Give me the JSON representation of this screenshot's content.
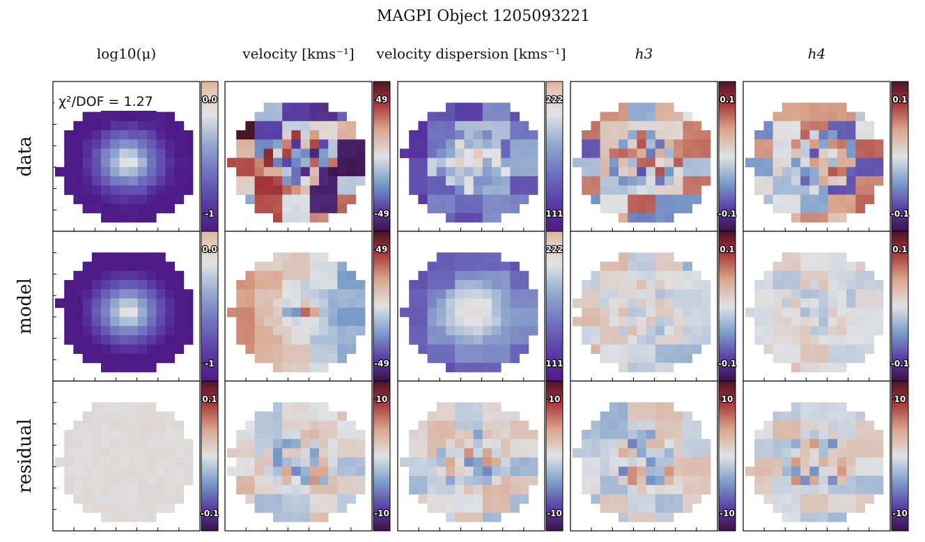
{
  "chart_data": {
    "type": "heatmap",
    "title": "MAGPI Object 1205093221",
    "column_titles": [
      "log10(μ)",
      "velocity [kms⁻¹]",
      "velocity dispersion [kms⁻¹]",
      "h3",
      "h4"
    ],
    "row_labels": [
      "data",
      "model",
      "residual"
    ],
    "annotation": "χ²/DOF = 1.27",
    "colormaps": {
      "sequential_twilight": [
        "#4e1a86",
        "#5b3fa6",
        "#6e6fbf",
        "#90a8cd",
        "#e0e3e6",
        "#e6cfc2",
        "#dfb39a"
      ],
      "diverging_twilight": [
        "#3d1248",
        "#5a3ea6",
        "#7a9cc9",
        "#dfe1e4",
        "#d9a58b",
        "#a8383a",
        "#4d1428"
      ]
    },
    "panels": [
      {
        "row": "data",
        "column": "log10(μ)",
        "colormap": "sequential_twilight",
        "cbar_top": "0.0",
        "cbar_bottom": "-1",
        "vmin": -1,
        "vmax": 0
      },
      {
        "row": "data",
        "column": "velocity",
        "colormap": "diverging_twilight",
        "cbar_top": "49",
        "cbar_bottom": "-49",
        "vmin": -49,
        "vmax": 49
      },
      {
        "row": "data",
        "column": "velocity dispersion",
        "colormap": "sequential_twilight",
        "cbar_top": "222",
        "cbar_bottom": "111",
        "vmin": 111,
        "vmax": 222
      },
      {
        "row": "data",
        "column": "h3",
        "colormap": "diverging_twilight",
        "cbar_top": "0.1",
        "cbar_bottom": "-0.1",
        "vmin": -0.1,
        "vmax": 0.1
      },
      {
        "row": "data",
        "column": "h4",
        "colormap": "diverging_twilight",
        "cbar_top": "0.1",
        "cbar_bottom": "-0.1",
        "vmin": -0.1,
        "vmax": 0.1
      },
      {
        "row": "model",
        "column": "log10(μ)",
        "colormap": "sequential_twilight",
        "cbar_top": "0.0",
        "cbar_bottom": "-1",
        "vmin": -1,
        "vmax": 0
      },
      {
        "row": "model",
        "column": "velocity",
        "colormap": "diverging_twilight",
        "cbar_top": "49",
        "cbar_bottom": "-49",
        "vmin": -49,
        "vmax": 49
      },
      {
        "row": "model",
        "column": "velocity dispersion",
        "colormap": "sequential_twilight",
        "cbar_top": "222",
        "cbar_bottom": "111",
        "vmin": 111,
        "vmax": 222
      },
      {
        "row": "model",
        "column": "h3",
        "colormap": "diverging_twilight",
        "cbar_top": "0.1",
        "cbar_bottom": "-0.1",
        "vmin": -0.1,
        "vmax": 0.1
      },
      {
        "row": "model",
        "column": "h4",
        "colormap": "diverging_twilight",
        "cbar_top": "0.1",
        "cbar_bottom": "-0.1",
        "vmin": -0.1,
        "vmax": 0.1
      },
      {
        "row": "residual",
        "column": "log10(μ)",
        "colormap": "diverging_twilight",
        "cbar_top": "0.1",
        "cbar_bottom": "-0.1",
        "vmin": -0.1,
        "vmax": 0.1
      },
      {
        "row": "residual",
        "column": "velocity",
        "colormap": "diverging_twilight",
        "cbar_top": "10",
        "cbar_bottom": "-10",
        "vmin": -10,
        "vmax": 10
      },
      {
        "row": "residual",
        "column": "velocity dispersion",
        "colormap": "diverging_twilight",
        "cbar_top": "10",
        "cbar_bottom": "-10",
        "vmin": -10,
        "vmax": 10
      },
      {
        "row": "residual",
        "column": "h3",
        "colormap": "diverging_twilight",
        "cbar_top": "10",
        "cbar_bottom": "-10",
        "vmin": -10,
        "vmax": 10
      },
      {
        "row": "residual",
        "column": "h4",
        "colormap": "diverging_twilight",
        "cbar_top": "10",
        "cbar_bottom": "-10",
        "vmin": -10,
        "vmax": 10
      }
    ]
  }
}
